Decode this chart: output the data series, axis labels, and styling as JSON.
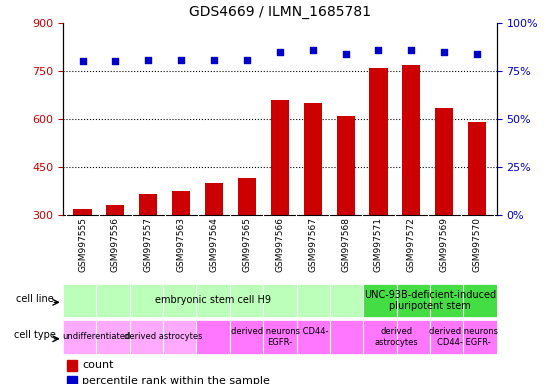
{
  "title": "GDS4669 / ILMN_1685781",
  "samples": [
    "GSM997555",
    "GSM997556",
    "GSM997557",
    "GSM997563",
    "GSM997564",
    "GSM997565",
    "GSM997566",
    "GSM997567",
    "GSM997568",
    "GSM997571",
    "GSM997572",
    "GSM997569",
    "GSM997570"
  ],
  "counts": [
    320,
    330,
    365,
    375,
    400,
    415,
    660,
    650,
    610,
    760,
    770,
    635,
    590
  ],
  "percentiles": [
    80,
    80,
    81,
    81,
    81,
    81,
    85,
    86,
    84,
    86,
    86,
    85,
    84
  ],
  "ylim_left": [
    300,
    900
  ],
  "ylim_right": [
    0,
    100
  ],
  "yticks_left": [
    300,
    450,
    600,
    750,
    900
  ],
  "yticks_right": [
    0,
    25,
    50,
    75,
    100
  ],
  "bar_color": "#cc0000",
  "dot_color": "#0000cc",
  "cell_line_groups": [
    {
      "label": "embryonic stem cell H9",
      "start": 0,
      "end": 8,
      "color": "#bbffbb"
    },
    {
      "label": "UNC-93B-deficient-induced\npluripotent stem",
      "start": 9,
      "end": 12,
      "color": "#44dd44"
    }
  ],
  "cell_type_groups": [
    {
      "label": "undifferentiated",
      "start": 0,
      "end": 1,
      "color": "#ffaaff"
    },
    {
      "label": "derived astrocytes",
      "start": 2,
      "end": 3,
      "color": "#ffaaff"
    },
    {
      "label": "derived neurons CD44-\nEGFR-",
      "start": 4,
      "end": 8,
      "color": "#ff77ff"
    },
    {
      "label": "derived\nastrocytes",
      "start": 9,
      "end": 10,
      "color": "#ff77ff"
    },
    {
      "label": "derived neurons\nCD44- EGFR-",
      "start": 11,
      "end": 12,
      "color": "#ff77ff"
    }
  ],
  "legend_count_color": "#cc0000",
  "legend_pct_color": "#0000cc",
  "tick_label_color_left": "#cc0000",
  "tick_label_color_right": "#0000cc",
  "grid_color": "black",
  "bg_color": "white",
  "tick_area_color": "#d8d8d8"
}
